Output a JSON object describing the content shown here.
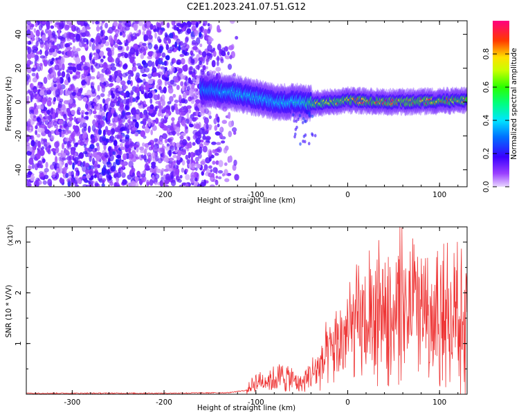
{
  "title": "C2E1.2023.241.07.51.G12",
  "colors": {
    "low": "#7a00ff",
    "mid_blue": "#1a00ff",
    "cyan": "#00e5ff",
    "green": "#00ff2a",
    "yellow": "#f5ff00",
    "red": "#ff1a1a",
    "magenta": "#ff0080",
    "snr_line": "#ee3333"
  },
  "chart_data": [
    {
      "type": "heatmap",
      "title": "C2E1.2023.241.07.51.G12",
      "xlabel": "Height of straight line (km)",
      "ylabel": "Frequency (Hz)",
      "xlim": [
        -350,
        130
      ],
      "ylim": [
        -50,
        48
      ],
      "xticks": [
        "-300",
        "-200",
        "-100",
        "0",
        "100"
      ],
      "xtick_values": [
        -300,
        -200,
        -100,
        0,
        100
      ],
      "yticks": [
        "-40",
        "-20",
        "0",
        "20",
        "40"
      ],
      "ytick_values": [
        -40,
        -20,
        0,
        20,
        40
      ],
      "colorbar": {
        "label": "Normalized spectral amplitude",
        "ticks": [
          "0.0",
          "0.2",
          "0.4",
          "0.6",
          "0.8"
        ],
        "tick_values": [
          0.0,
          0.2,
          0.4,
          0.6,
          0.8
        ],
        "range": [
          0,
          1
        ]
      },
      "ridge": {
        "description_points_km": [
          -160,
          -120,
          -80,
          -50,
          -35,
          0,
          50,
          130
        ],
        "center_hz": [
          8,
          5,
          0,
          0,
          -1,
          1,
          0,
          1
        ],
        "peak_amplitude": [
          0.35,
          0.45,
          0.45,
          0.5,
          0.8,
          0.85,
          0.95,
          0.85
        ]
      },
      "noise_region_km": [
        -350,
        -130
      ]
    },
    {
      "type": "line",
      "xlabel": "Height of straight line (km)",
      "ylabel": "SNR (10 * V/V)",
      "y_multiplier": "(x10",
      "y_multiplier_exp": "4",
      "y_multiplier_close": ")",
      "xlim": [
        -350,
        130
      ],
      "ylim": [
        0,
        3.3
      ],
      "xticks": [
        "-300",
        "-200",
        "-100",
        "0",
        "100"
      ],
      "xtick_values": [
        -300,
        -200,
        -100,
        0,
        100
      ],
      "yticks": [
        "1",
        "2",
        "3"
      ],
      "ytick_values": [
        1,
        2,
        3
      ],
      "series": [
        {
          "name": "SNR",
          "envelope_x_km": [
            -350,
            -200,
            -130,
            -110,
            -100,
            -80,
            -70,
            -60,
            -50,
            -40,
            -30,
            -20,
            -10,
            0,
            20,
            40,
            60,
            80,
            100,
            130
          ],
          "envelope_mean": [
            0.02,
            0.02,
            0.03,
            0.08,
            0.25,
            0.3,
            0.35,
            0.3,
            0.2,
            0.4,
            0.55,
            0.8,
            1.0,
            1.2,
            1.45,
            1.65,
            1.7,
            1.65,
            1.6,
            1.55
          ]
        }
      ]
    }
  ]
}
